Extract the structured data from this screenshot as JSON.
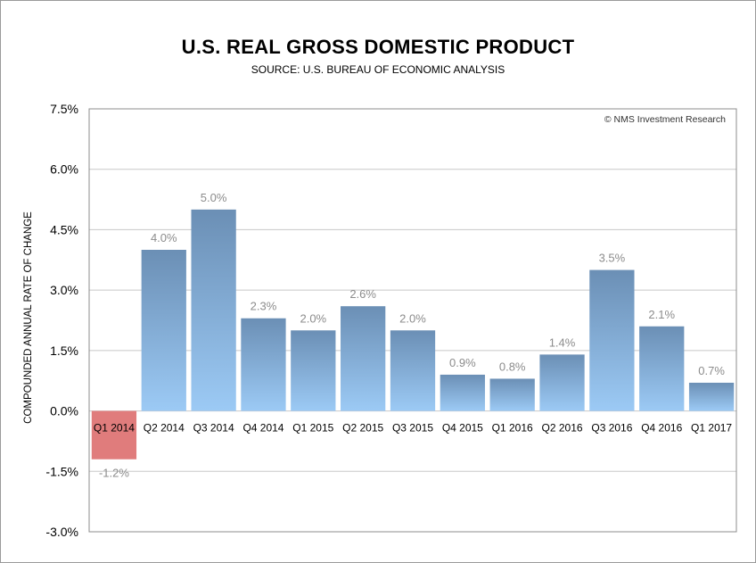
{
  "chart_data": {
    "type": "bar",
    "title": "U.S. REAL GROSS DOMESTIC PRODUCT",
    "subtitle": "SOURCE: U.S. BUREAU OF ECONOMIC ANALYSIS",
    "ylabel": "COMPOUNDED ANNUAL RATE OF CHANGE",
    "xlabel": "",
    "annotation": "© NMS Investment Research",
    "ylim": [
      -3.0,
      7.5
    ],
    "yticks": [
      -3.0,
      -1.5,
      0.0,
      1.5,
      3.0,
      4.5,
      6.0,
      7.5
    ],
    "ytick_labels": [
      "-3.0%",
      "-1.5%",
      "0.0%",
      "1.5%",
      "3.0%",
      "4.5%",
      "6.0%",
      "7.5%"
    ],
    "grid": true,
    "categories": [
      "Q1 2014",
      "Q2 2014",
      "Q3 2014",
      "Q4 2014",
      "Q1 2015",
      "Q2 2015",
      "Q3 2015",
      "Q4 2015",
      "Q1 2016",
      "Q2 2016",
      "Q3 2016",
      "Q4 2016",
      "Q1 2017"
    ],
    "values": [
      -1.2,
      4.0,
      5.0,
      2.3,
      2.0,
      2.6,
      2.0,
      0.9,
      0.8,
      1.4,
      3.5,
      2.1,
      0.7
    ],
    "value_labels": [
      "-1.2%",
      "4.0%",
      "5.0%",
      "2.3%",
      "2.0%",
      "2.6%",
      "2.0%",
      "0.9%",
      "0.8%",
      "1.4%",
      "3.5%",
      "2.1%",
      "0.7%"
    ],
    "colors": {
      "positive_top": "#6b8fb5",
      "positive_bottom": "#9ccaf5",
      "negative": "#e07c7c",
      "grid": "#c8c8c8",
      "value_label": "#8c8c8c"
    }
  }
}
